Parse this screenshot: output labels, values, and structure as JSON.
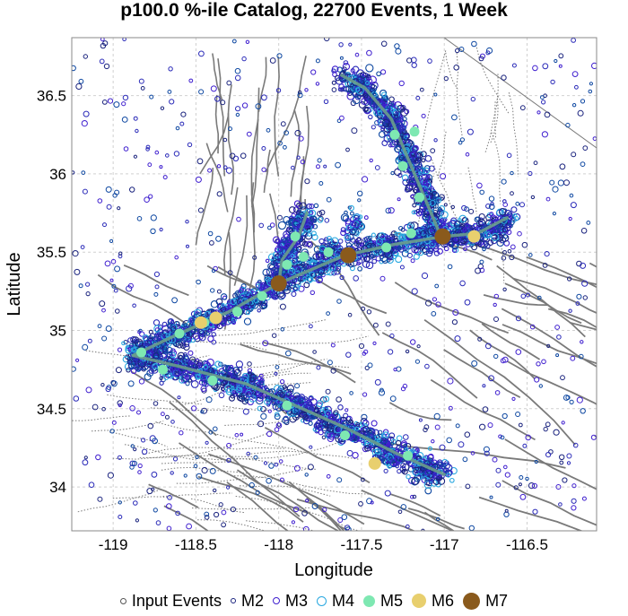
{
  "title": "p100.0 %-ile Catalog, 22700 Events, 1 Week",
  "chart_data": {
    "type": "scatter",
    "title": "p100.0 %-ile Catalog, 22700 Events, 1 Week",
    "xlabel": "Longitude",
    "ylabel": "Latitude",
    "xlim": [
      -119.25,
      -116.08
    ],
    "ylim": [
      33.72,
      36.87
    ],
    "x_ticks": [
      -119,
      -118.5,
      -118,
      -117.5,
      -117,
      -116.5
    ],
    "x_tick_labels": [
      "-119",
      "-118.5",
      "-118",
      "-117.5",
      "-117",
      "-116.5"
    ],
    "y_ticks": [
      34,
      34.5,
      35,
      35.5,
      36,
      36.5
    ],
    "y_tick_labels": [
      "34",
      "34.5",
      "35",
      "35.5",
      "36",
      "36.5"
    ],
    "grid": true,
    "legend_position": "bottom",
    "ruptures": [
      [
        [
          -118.88,
          34.84
        ],
        [
          -118.6,
          34.98
        ],
        [
          -118.3,
          35.12
        ],
        [
          -118.0,
          35.3
        ],
        [
          -117.6,
          35.48
        ],
        [
          -117.3,
          35.55
        ],
        [
          -117.0,
          35.6
        ],
        [
          -116.8,
          35.62
        ],
        [
          -116.62,
          35.72
        ]
      ],
      [
        [
          -118.0,
          35.3
        ],
        [
          -117.98,
          35.45
        ],
        [
          -117.88,
          35.6
        ],
        [
          -117.83,
          35.75
        ]
      ],
      [
        [
          -118.88,
          34.84
        ],
        [
          -118.6,
          34.77
        ],
        [
          -118.2,
          34.66
        ],
        [
          -117.9,
          34.52
        ],
        [
          -117.6,
          34.38
        ],
        [
          -117.3,
          34.22
        ],
        [
          -117.0,
          34.08
        ]
      ],
      [
        [
          -117.02,
          35.6
        ],
        [
          -117.12,
          35.85
        ],
        [
          -117.22,
          36.1
        ],
        [
          -117.32,
          36.35
        ],
        [
          -117.48,
          36.55
        ],
        [
          -117.62,
          36.63
        ]
      ]
    ],
    "series": [
      {
        "name": "M5",
        "points": [
          [
            -118.83,
            34.86
          ],
          [
            -118.6,
            34.98
          ],
          [
            -118.45,
            35.05
          ],
          [
            -118.25,
            35.12
          ],
          [
            -118.1,
            35.22
          ],
          [
            -117.95,
            35.42
          ],
          [
            -117.85,
            35.47
          ],
          [
            -117.9,
            35.6
          ],
          [
            -117.7,
            35.5
          ],
          [
            -117.35,
            35.53
          ],
          [
            -117.2,
            35.62
          ],
          [
            -117.15,
            35.85
          ],
          [
            -117.25,
            36.05
          ],
          [
            -117.3,
            36.25
          ],
          [
            -117.18,
            36.27
          ],
          [
            -118.7,
            34.75
          ],
          [
            -118.4,
            34.68
          ],
          [
            -117.95,
            34.52
          ],
          [
            -117.6,
            34.33
          ],
          [
            -117.22,
            34.2
          ]
        ]
      },
      {
        "name": "M6",
        "points": [
          [
            -118.38,
            35.08
          ],
          [
            -118.47,
            35.05
          ],
          [
            -116.82,
            35.6
          ],
          [
            -117.42,
            34.15
          ]
        ]
      },
      {
        "name": "M7",
        "points": [
          [
            -118.0,
            35.3
          ],
          [
            -117.58,
            35.48
          ],
          [
            -117.01,
            35.6
          ]
        ]
      }
    ],
    "clusters": [
      {
        "x": -118.87,
        "y": 34.85
      },
      {
        "x": -118.65,
        "y": 34.97
      },
      {
        "x": -118.45,
        "y": 35.06
      },
      {
        "x": -118.2,
        "y": 35.18
      },
      {
        "x": -118.0,
        "y": 35.32
      },
      {
        "x": -117.95,
        "y": 35.5
      },
      {
        "x": -117.88,
        "y": 35.68
      },
      {
        "x": -117.7,
        "y": 35.52
      },
      {
        "x": -117.55,
        "y": 35.68
      },
      {
        "x": -117.35,
        "y": 35.52
      },
      {
        "x": -117.15,
        "y": 35.6
      },
      {
        "x": -116.9,
        "y": 35.62
      },
      {
        "x": -116.65,
        "y": 35.65
      },
      {
        "x": -117.1,
        "y": 35.85
      },
      {
        "x": -117.2,
        "y": 36.1
      },
      {
        "x": -117.3,
        "y": 36.35
      },
      {
        "x": -117.5,
        "y": 36.58
      },
      {
        "x": -118.6,
        "y": 34.76
      },
      {
        "x": -118.25,
        "y": 34.66
      },
      {
        "x": -117.9,
        "y": 34.52
      },
      {
        "x": -117.6,
        "y": 34.35
      },
      {
        "x": -117.35,
        "y": 34.2
      },
      {
        "x": -117.1,
        "y": 34.08
      }
    ],
    "legend": [
      {
        "label": "Input Events",
        "symbol": "small-open-circle",
        "color": "#555555"
      },
      {
        "label": "M2",
        "symbol": "open-circle",
        "color": "#1a237e"
      },
      {
        "label": "M3",
        "symbol": "open-circle",
        "color": "#3f1fcf"
      },
      {
        "label": "M4",
        "symbol": "open-circle",
        "color": "#29a8e0"
      },
      {
        "label": "M5",
        "symbol": "filled-circle",
        "color": "#7ee8b2"
      },
      {
        "label": "M6",
        "symbol": "filled-circle",
        "color": "#e8cf6e"
      },
      {
        "label": "M7",
        "symbol": "filled-circle",
        "color": "#8a5a1c"
      }
    ]
  },
  "colors": {
    "fault": "#7a7a7a",
    "rupture": "#6a9f8c",
    "background_events": "#1a2a9c"
  }
}
